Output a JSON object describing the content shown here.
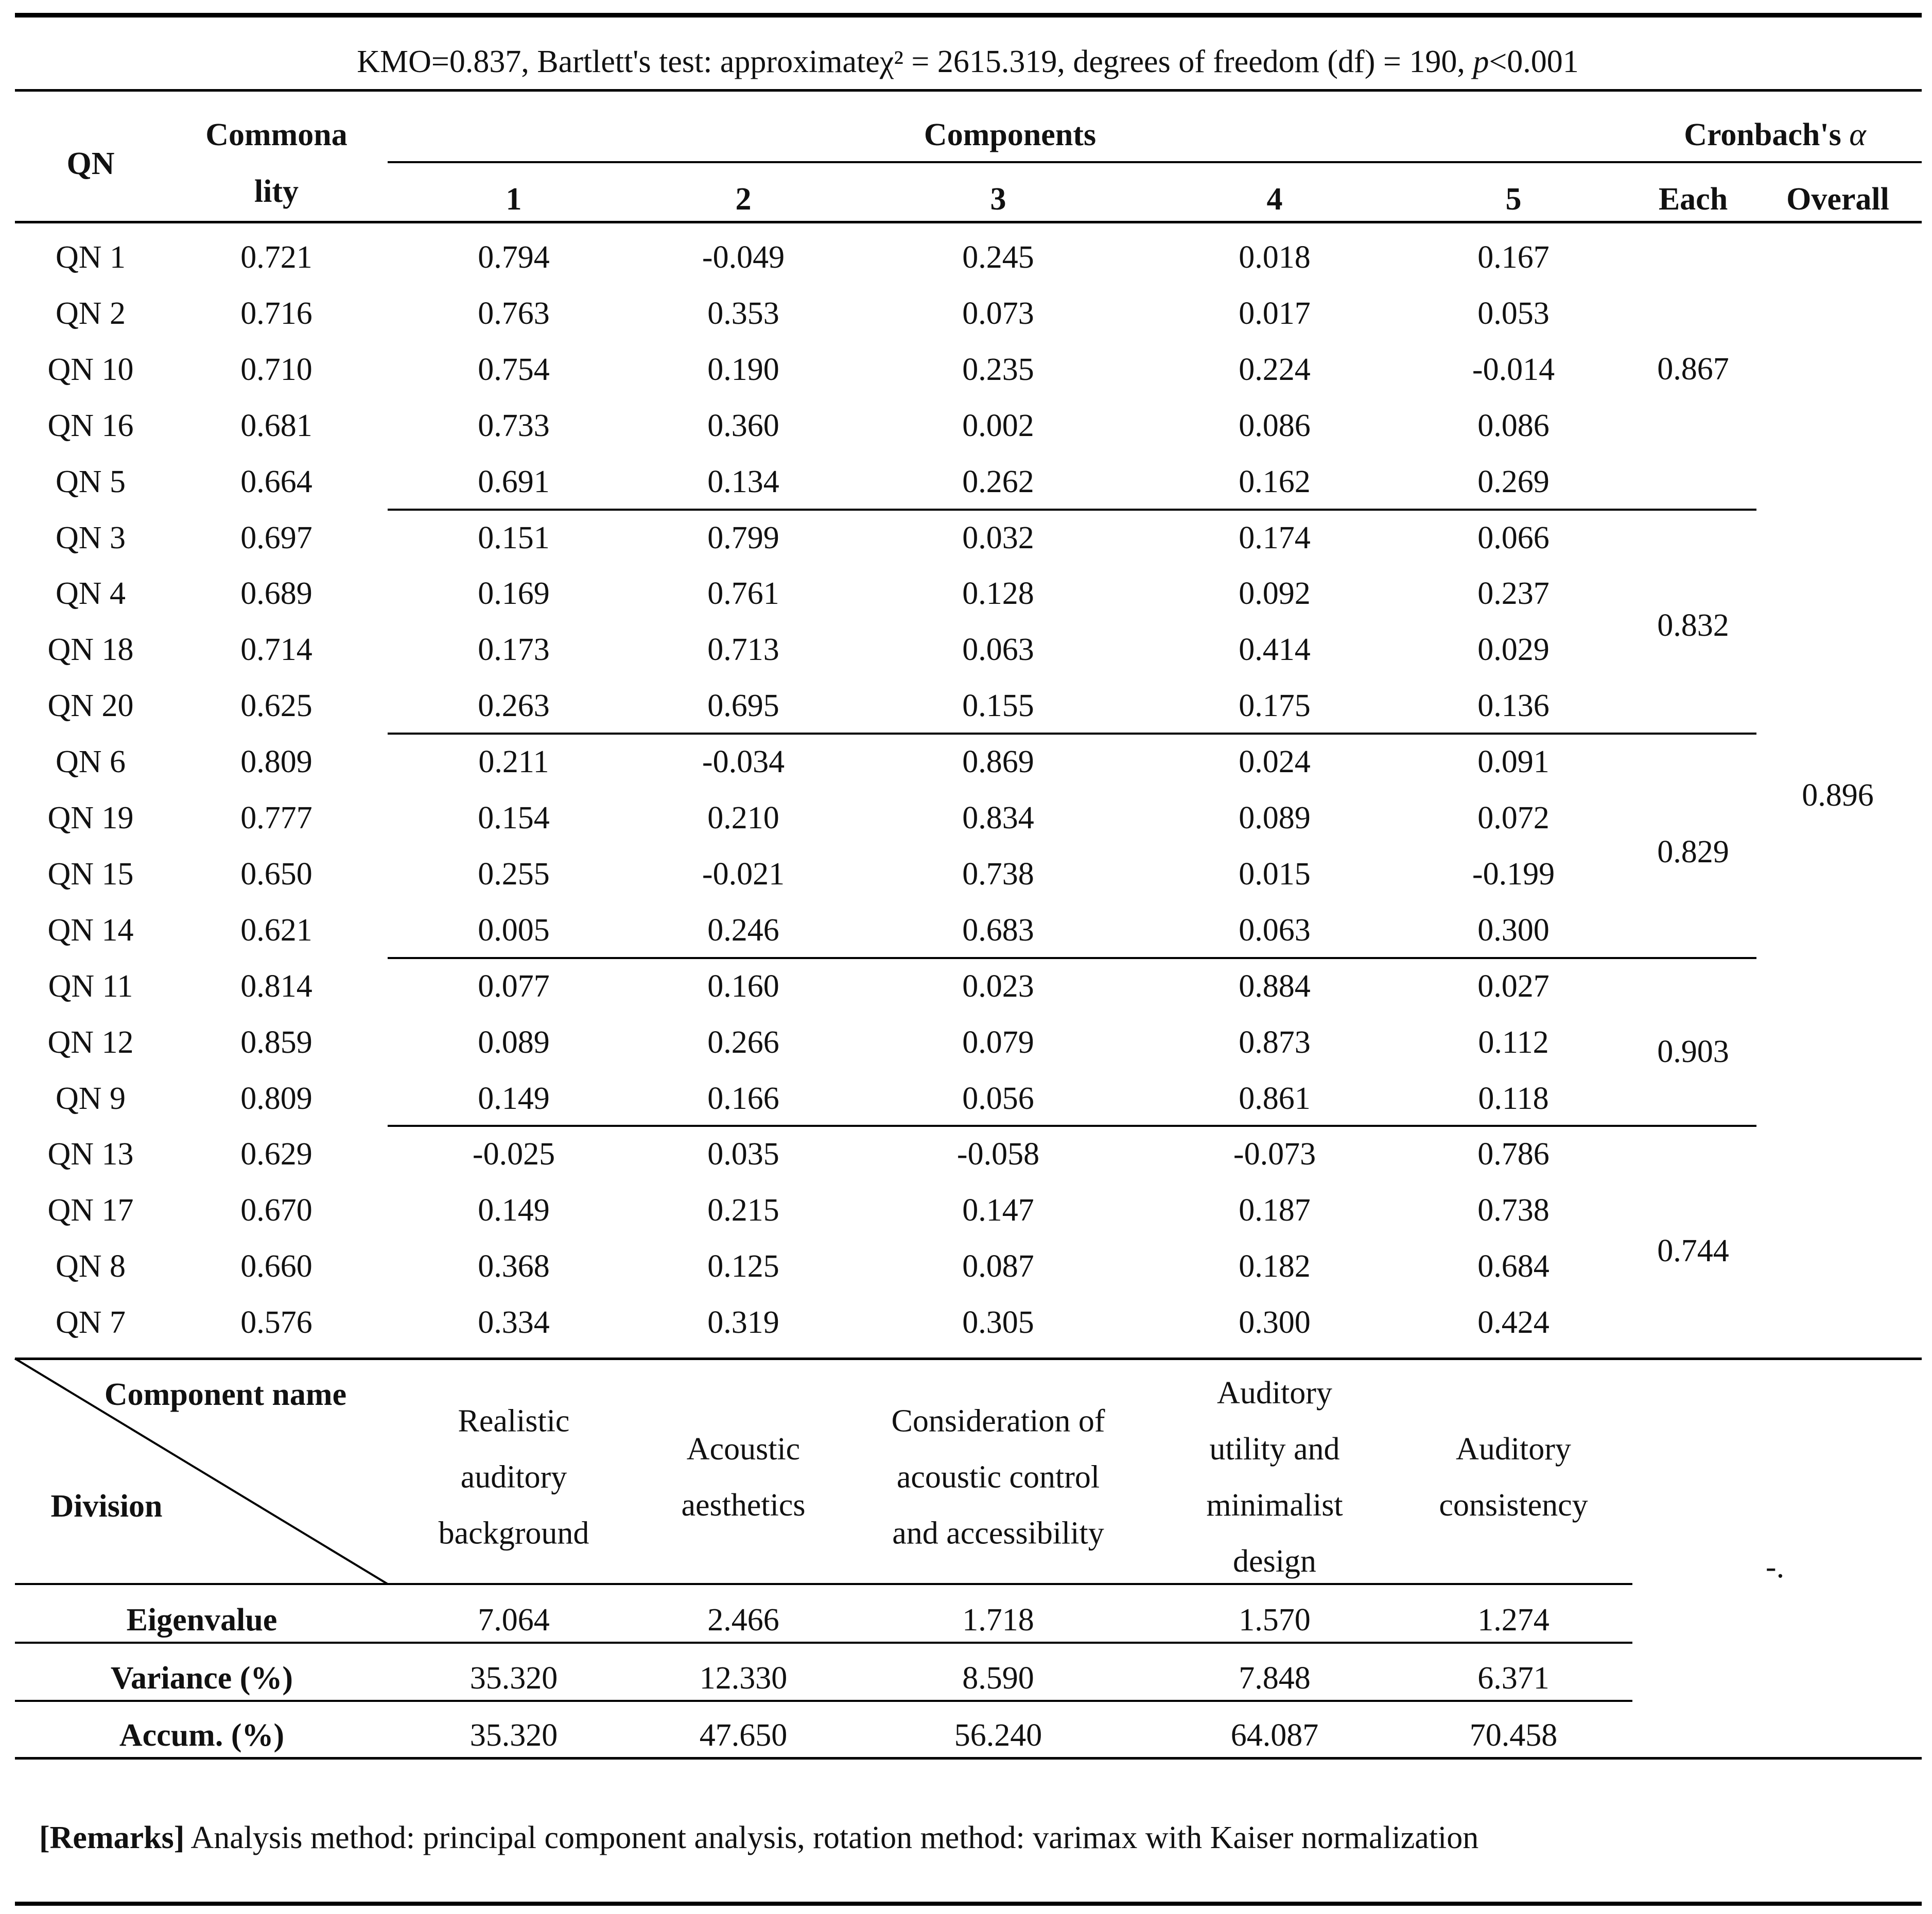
{
  "caption": {
    "kmo": "KMO=0.837, Bartlett's test: approximate",
    "chi": "χ² = 2615.319, degrees of freedom (df) = 190, ",
    "p": "p",
    "p_rest": "<0.001"
  },
  "header": {
    "qn": "QN",
    "commonality_1": "Commona",
    "commonality_2": "lity",
    "components": "Components",
    "components_numbers": [
      "1",
      "2",
      "3",
      "4",
      "5"
    ],
    "cronbach": "Cronbach's ",
    "alpha": "α",
    "each": "Each",
    "overall": "Overall"
  },
  "rows": [
    {
      "qn": "QN 1",
      "comm": "0.721",
      "c": [
        "0.794",
        "-0.049",
        "0.245",
        "0.018",
        "0.167"
      ]
    },
    {
      "qn": "QN 2",
      "comm": "0.716",
      "c": [
        "0.763",
        "0.353",
        "0.073",
        "0.017",
        "0.053"
      ]
    },
    {
      "qn": "QN 10",
      "comm": "0.710",
      "c": [
        "0.754",
        "0.190",
        "0.235",
        "0.224",
        "-0.014"
      ]
    },
    {
      "qn": "QN 16",
      "comm": "0.681",
      "c": [
        "0.733",
        "0.360",
        "0.002",
        "0.086",
        "0.086"
      ]
    },
    {
      "qn": "QN 5",
      "comm": "0.664",
      "c": [
        "0.691",
        "0.134",
        "0.262",
        "0.162",
        "0.269"
      ]
    },
    {
      "qn": "QN 3",
      "comm": "0.697",
      "c": [
        "0.151",
        "0.799",
        "0.032",
        "0.174",
        "0.066"
      ]
    },
    {
      "qn": "QN 4",
      "comm": "0.689",
      "c": [
        "0.169",
        "0.761",
        "0.128",
        "0.092",
        "0.237"
      ]
    },
    {
      "qn": "QN 18",
      "comm": "0.714",
      "c": [
        "0.173",
        "0.713",
        "0.063",
        "0.414",
        "0.029"
      ]
    },
    {
      "qn": "QN 20",
      "comm": "0.625",
      "c": [
        "0.263",
        "0.695",
        "0.155",
        "0.175",
        "0.136"
      ]
    },
    {
      "qn": "QN 6",
      "comm": "0.809",
      "c": [
        "0.211",
        "-0.034",
        "0.869",
        "0.024",
        "0.091"
      ]
    },
    {
      "qn": "QN 19",
      "comm": "0.777",
      "c": [
        "0.154",
        "0.210",
        "0.834",
        "0.089",
        "0.072"
      ]
    },
    {
      "qn": "QN 15",
      "comm": "0.650",
      "c": [
        "0.255",
        "-0.021",
        "0.738",
        "0.015",
        "-0.199"
      ]
    },
    {
      "qn": "QN 14",
      "comm": "0.621",
      "c": [
        "0.005",
        "0.246",
        "0.683",
        "0.063",
        "0.300"
      ]
    },
    {
      "qn": "QN 11",
      "comm": "0.814",
      "c": [
        "0.077",
        "0.160",
        "0.023",
        "0.884",
        "0.027"
      ]
    },
    {
      "qn": "QN 12",
      "comm": "0.859",
      "c": [
        "0.089",
        "0.266",
        "0.079",
        "0.873",
        "0.112"
      ]
    },
    {
      "qn": "QN 9",
      "comm": "0.809",
      "c": [
        "0.149",
        "0.166",
        "0.056",
        "0.861",
        "0.118"
      ]
    },
    {
      "qn": "QN 13",
      "comm": "0.629",
      "c": [
        "-0.025",
        "0.035",
        "-0.058",
        "-0.073",
        "0.786"
      ]
    },
    {
      "qn": "QN 17",
      "comm": "0.670",
      "c": [
        "0.149",
        "0.215",
        "0.147",
        "0.187",
        "0.738"
      ]
    },
    {
      "qn": "QN 8",
      "comm": "0.660",
      "c": [
        "0.368",
        "0.125",
        "0.087",
        "0.182",
        "0.684"
      ]
    },
    {
      "qn": "QN 7",
      "comm": "0.576",
      "c": [
        "0.334",
        "0.319",
        "0.305",
        "0.300",
        "0.424"
      ]
    }
  ],
  "cronbach_each": [
    "0.867",
    "0.832",
    "0.829",
    "0.903",
    "0.744"
  ],
  "cronbach_overall": "0.896",
  "names_header": {
    "component_name": "Component name",
    "division": "Division"
  },
  "component_names": [
    [
      "Realistic",
      "auditory",
      "background"
    ],
    [
      "Acoustic",
      "aesthetics"
    ],
    [
      "Consideration of",
      "acoustic control",
      "and accessibility"
    ],
    [
      "Auditory",
      "utility and",
      "minimalist",
      "design"
    ],
    [
      "Auditory",
      "consistency"
    ]
  ],
  "summary": [
    {
      "label": "Eigenvalue",
      "values": [
        "7.064",
        "2.466",
        "1.718",
        "1.570",
        "1.274"
      ]
    },
    {
      "label": "Variance (%)",
      "values": [
        "35.320",
        "12.330",
        "8.590",
        "7.848",
        "6.371"
      ]
    },
    {
      "label": "Accum. (%)",
      "values": [
        "35.320",
        "47.650",
        "56.240",
        "64.087",
        "70.458"
      ]
    }
  ],
  "summary_cronbach": "-.",
  "remarks": {
    "label": "[Remarks]",
    "text": " Analysis method: principal component analysis, rotation method: varimax with Kaiser normalization"
  }
}
